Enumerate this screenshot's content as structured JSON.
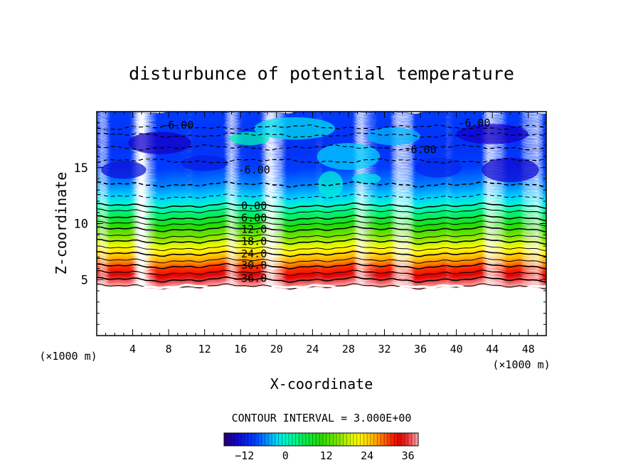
{
  "chart_data": {
    "type": "heatmap",
    "title": "disturbunce of potential temperature",
    "xlabel": "X-coordinate",
    "ylabel": "Z-coordinate",
    "x_unit_label": "(×1000 m)",
    "z_unit_label": "(×1000 m)",
    "xlim": [
      0,
      50
    ],
    "ylim": [
      0,
      20
    ],
    "x_ticks": [
      4,
      8,
      12,
      16,
      20,
      24,
      28,
      32,
      36,
      40,
      44,
      48
    ],
    "y_ticks": [
      5,
      10,
      15
    ],
    "contour_interval_label": "CONTOUR INTERVAL = 3.000E+00",
    "contour_interval": 3.0,
    "colorbar": {
      "range": [
        -18,
        39
      ],
      "ticks": [
        -12,
        0,
        12,
        24,
        36
      ]
    },
    "contour_labels": [
      {
        "text": "-6.00",
        "x": 9,
        "z": 18.8
      },
      {
        "text": "-6.00",
        "x": 42,
        "z": 19.0
      },
      {
        "text": "-6.00",
        "x": 36,
        "z": 16.6
      },
      {
        "text": "-6.00",
        "x": 17.5,
        "z": 14.8
      },
      {
        "text": "0.00",
        "x": 17.5,
        "z": 11.6
      },
      {
        "text": "6.00",
        "x": 17.5,
        "z": 10.5
      },
      {
        "text": "12.0",
        "x": 17.5,
        "z": 9.5
      },
      {
        "text": "18.0",
        "x": 17.5,
        "z": 8.4
      },
      {
        "text": "24.0",
        "x": 17.5,
        "z": 7.3
      },
      {
        "text": "30.0",
        "x": 17.5,
        "z": 6.3
      },
      {
        "text": "36.0",
        "x": 17.5,
        "z": 5.1
      }
    ],
    "profile": [
      {
        "z": 4.4,
        "value": 39
      },
      {
        "z": 5.0,
        "value": 36
      },
      {
        "z": 5.6,
        "value": 33
      },
      {
        "z": 6.2,
        "value": 30
      },
      {
        "z": 6.7,
        "value": 27
      },
      {
        "z": 7.3,
        "value": 24
      },
      {
        "z": 7.8,
        "value": 21
      },
      {
        "z": 8.4,
        "value": 18
      },
      {
        "z": 8.9,
        "value": 15
      },
      {
        "z": 9.5,
        "value": 12
      },
      {
        "z": 10.0,
        "value": 9
      },
      {
        "z": 10.5,
        "value": 6
      },
      {
        "z": 11.1,
        "value": 3
      },
      {
        "z": 11.6,
        "value": 0
      },
      {
        "z": 12.4,
        "value": -3
      },
      {
        "z": 13.5,
        "value": -6
      },
      {
        "z": 15.0,
        "value": -9
      },
      {
        "z": 17.0,
        "value": -10
      },
      {
        "z": 20.0,
        "value": -9
      }
    ],
    "ground_z": 4.3
  }
}
